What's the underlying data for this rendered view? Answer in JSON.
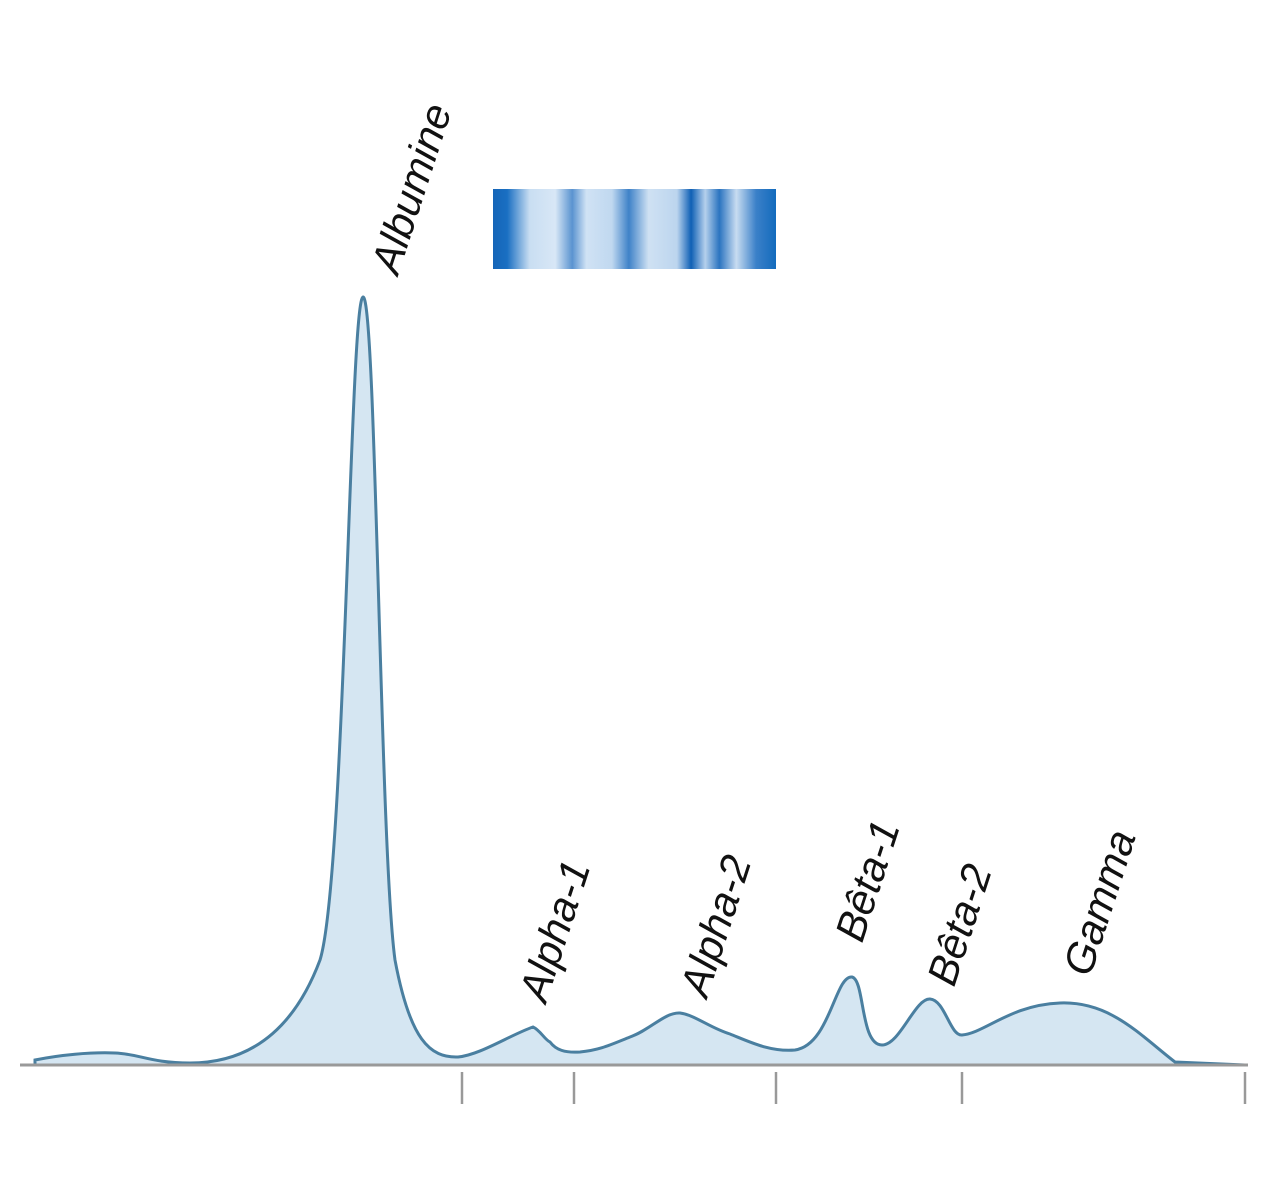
{
  "labels": {
    "albumin": "Albumine",
    "alpha1": "Alpha-1",
    "alpha2": "Alpha-2",
    "beta1": "Bêta-1",
    "beta2": "Bêta-2",
    "gamma": "Gamma"
  }
}
